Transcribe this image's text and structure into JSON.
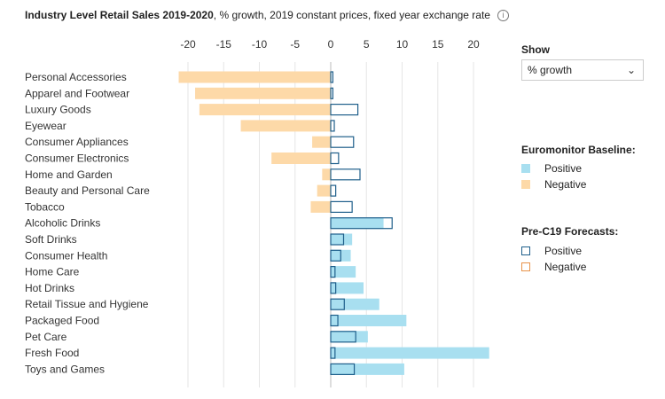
{
  "title": {
    "bold": "Industry Level Retail Sales 2019-2020",
    "rest": ", % growth, 2019 constant prices, fixed year exchange rate",
    "icon": "info-icon"
  },
  "controls": {
    "show_label": "Show",
    "show_value": "% growth",
    "chevron": "chevron-down-icon"
  },
  "legend": {
    "baseline_title": "Euromonitor Baseline:",
    "baseline_positive": "Positive",
    "baseline_negative": "Negative",
    "forecast_title": "Pre-C19 Forecasts:",
    "forecast_positive": "Positive",
    "forecast_negative": "Negative"
  },
  "colors": {
    "baseline_positive": "#a8dff0",
    "baseline_negative": "#fdd9a8",
    "forecast_positive": "#1f5f8b",
    "forecast_negative": "#e8934a"
  },
  "chart_data": {
    "type": "bar",
    "orientation": "horizontal",
    "xlim": [
      -21.5,
      22.5
    ],
    "xticks": [
      -20,
      -15,
      -10,
      -5,
      0,
      5,
      10,
      15,
      20
    ],
    "grid": true,
    "categories": [
      "Personal Accessories",
      "Apparel and Footwear",
      "Luxury Goods",
      "Eyewear",
      "Consumer Appliances",
      "Consumer Electronics",
      "Home and Garden",
      "Beauty and Personal Care",
      "Tobacco",
      "Alcoholic Drinks",
      "Soft Drinks",
      "Consumer Health",
      "Home Care",
      "Hot Drinks",
      "Retail Tissue and Hygiene",
      "Packaged Food",
      "Pet Care",
      "Fresh Food",
      "Toys and Games"
    ],
    "series": [
      {
        "name": "Euromonitor Baseline",
        "values": [
          -21.3,
          -19,
          -18.4,
          -12.6,
          -2.6,
          -8.3,
          -1.2,
          -1.9,
          -2.8,
          7.4,
          3,
          2.8,
          3.5,
          4.6,
          6.8,
          10.6,
          5.2,
          22.2,
          10.3
        ]
      },
      {
        "name": "Pre-C19 Forecasts",
        "values": [
          0.3,
          0.3,
          3.8,
          0.5,
          3.2,
          1.1,
          4.1,
          0.7,
          3,
          8.6,
          1.8,
          1.4,
          0.6,
          0.7,
          1.9,
          1,
          3.5,
          0.6,
          3.3
        ]
      }
    ]
  }
}
